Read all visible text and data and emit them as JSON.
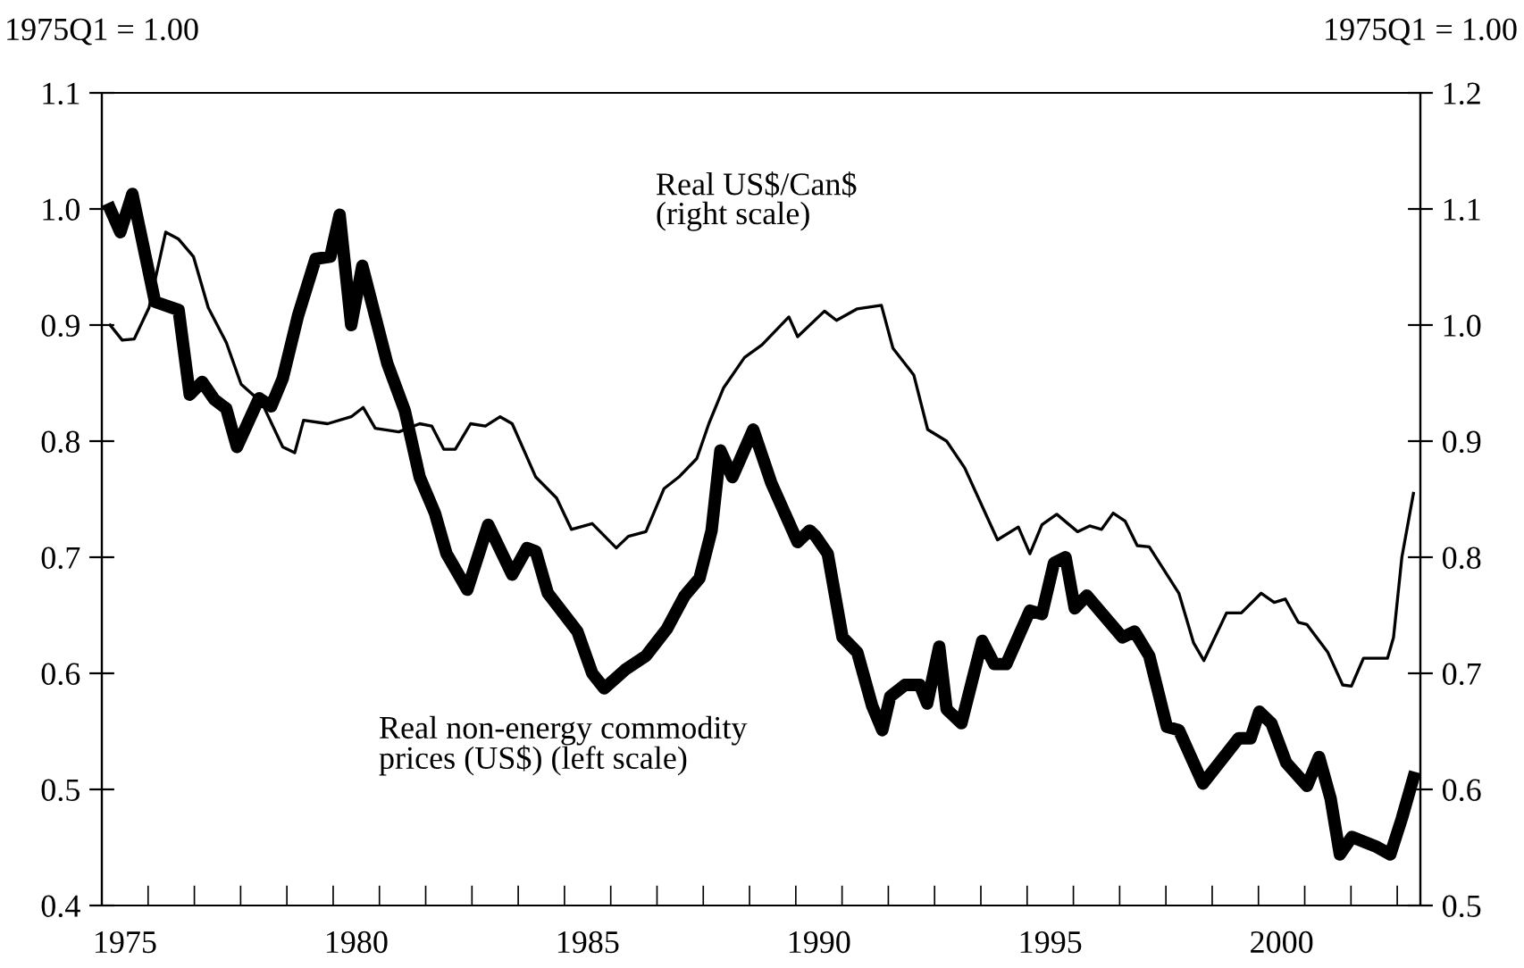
{
  "chart_data": {
    "type": "line",
    "ylabel": "1975Q1 = 1.00",
    "y2label": "1975Q1 = 1.00",
    "xlim": [
      1975,
      2003.5
    ],
    "xticks": [
      {
        "value": 1976,
        "label": null
      },
      {
        "value": 1977,
        "label": null
      },
      {
        "value": 1978,
        "label": null
      },
      {
        "value": 1979,
        "label": null
      },
      {
        "value": 1980,
        "label": null
      },
      {
        "value": 1981,
        "label": null
      },
      {
        "value": 1982,
        "label": null
      },
      {
        "value": 1983,
        "label": null
      },
      {
        "value": 1984,
        "label": null
      },
      {
        "value": 1985,
        "label": null
      },
      {
        "value": 1986,
        "label": null
      },
      {
        "value": 1987,
        "label": null
      },
      {
        "value": 1988,
        "label": null
      },
      {
        "value": 1989,
        "label": null
      },
      {
        "value": 1990,
        "label": null
      },
      {
        "value": 1991,
        "label": null
      },
      {
        "value": 1992,
        "label": null
      },
      {
        "value": 1993,
        "label": null
      },
      {
        "value": 1994,
        "label": null
      },
      {
        "value": 1995,
        "label": null
      },
      {
        "value": 1996,
        "label": null
      },
      {
        "value": 1997,
        "label": null
      },
      {
        "value": 1998,
        "label": null
      },
      {
        "value": 1999,
        "label": null
      },
      {
        "value": 2000,
        "label": null
      },
      {
        "value": 2001,
        "label": null
      },
      {
        "value": 2002,
        "label": null
      },
      {
        "value": 2003,
        "label": null
      },
      {
        "value": 1975.5,
        "label": "1975"
      },
      {
        "value": 1980.5,
        "label": "1980"
      },
      {
        "value": 1985.5,
        "label": "1985"
      },
      {
        "value": 1990.5,
        "label": "1990"
      },
      {
        "value": 1995.5,
        "label": "1995"
      },
      {
        "value": 2000.5,
        "label": "2000"
      }
    ],
    "ylim": [
      0.4,
      1.1
    ],
    "yticks": [
      {
        "value": 0.4,
        "label": "0.4"
      },
      {
        "value": 0.5,
        "label": "0.5"
      },
      {
        "value": 0.6,
        "label": "0.6"
      },
      {
        "value": 0.7,
        "label": "0.7"
      },
      {
        "value": 0.8,
        "label": "0.8"
      },
      {
        "value": 0.9,
        "label": "0.9"
      },
      {
        "value": 1.0,
        "label": "1.0"
      },
      {
        "value": 1.1,
        "label": "1.1"
      }
    ],
    "y2lim": [
      0.5,
      1.2
    ],
    "y2ticks": [
      {
        "value": 0.5,
        "label": "0.5"
      },
      {
        "value": 0.6,
        "label": "0.6"
      },
      {
        "value": 0.7,
        "label": "0.7"
      },
      {
        "value": 0.8,
        "label": "0.8"
      },
      {
        "value": 0.9,
        "label": "0.9"
      },
      {
        "value": 1.0,
        "label": "1.0"
      },
      {
        "value": 1.1,
        "label": "1.1"
      },
      {
        "value": 1.2,
        "label": "1.2"
      }
    ],
    "grid": false,
    "legend": false,
    "marker": "none",
    "line_style": "solid",
    "series": [
      {
        "name": "Real US$/Can$\n(right scale)",
        "color": "#000000",
        "axis": "y2",
        "x": [
          1975.18,
          1975.44,
          1975.7,
          1976.02,
          1976.38,
          1976.66,
          1976.98,
          1977.3,
          1977.69,
          1978.01,
          1978.46,
          1978.91,
          1979.17,
          1979.36,
          1979.88,
          1980.39,
          1980.65,
          1980.91,
          1981.42,
          1981.87,
          1982.13,
          1982.39,
          1982.64,
          1982.97,
          1983.29,
          1983.61,
          1983.87,
          1984.38,
          1984.83,
          1985.15,
          1985.6,
          1986.12,
          1986.38,
          1986.76,
          1987.15,
          1987.47,
          1987.86,
          1988.12,
          1988.44,
          1988.89,
          1989.27,
          1989.85,
          1990.04,
          1990.62,
          1990.88,
          1991.33,
          1991.85,
          1992.1,
          1992.55,
          1992.85,
          1993.26,
          1993.65,
          1993.97,
          1994.36,
          1994.81,
          1995.06,
          1995.32,
          1995.64,
          1996.09,
          1996.35,
          1996.61,
          1996.86,
          1997.12,
          1997.38,
          1997.64,
          1998.28,
          1998.6,
          1998.82,
          1999.31,
          1999.63,
          2000.06,
          2000.34,
          2000.58,
          2000.86,
          2001.05,
          2001.5,
          2001.82,
          2002.01,
          2002.27,
          2002.79,
          2002.92,
          2003.1,
          2003.35
        ],
        "values": [
          1.0,
          0.987,
          0.988,
          1.015,
          1.08,
          1.074,
          1.059,
          1.015,
          0.985,
          0.949,
          0.933,
          0.895,
          0.89,
          0.918,
          0.915,
          0.921,
          0.929,
          0.911,
          0.908,
          0.915,
          0.913,
          0.893,
          0.893,
          0.915,
          0.913,
          0.921,
          0.915,
          0.869,
          0.851,
          0.824,
          0.829,
          0.808,
          0.818,
          0.822,
          0.859,
          0.869,
          0.885,
          0.915,
          0.946,
          0.972,
          0.983,
          1.007,
          0.99,
          1.012,
          1.004,
          1.014,
          1.017,
          0.98,
          0.957,
          0.91,
          0.9,
          0.877,
          0.849,
          0.815,
          0.826,
          0.803,
          0.828,
          0.837,
          0.822,
          0.827,
          0.824,
          0.838,
          0.831,
          0.81,
          0.809,
          0.769,
          0.726,
          0.711,
          0.752,
          0.752,
          0.769,
          0.761,
          0.764,
          0.744,
          0.742,
          0.718,
          0.69,
          0.689,
          0.713,
          0.713,
          0.731,
          0.8,
          0.855
        ]
      },
      {
        "name": "Real non-energy commodity\nprices (US$) (left scale)",
        "color": "#000000",
        "x": [
          1975.18,
          1975.4,
          1975.66,
          1976.15,
          1976.66,
          1976.9,
          1977.17,
          1977.43,
          1977.69,
          1977.92,
          1978.4,
          1978.66,
          1978.91,
          1979.24,
          1979.62,
          1979.94,
          1980.14,
          1980.39,
          1980.63,
          1981.17,
          1981.55,
          1981.87,
          1982.2,
          1982.45,
          1982.9,
          1983.35,
          1983.87,
          1984.19,
          1984.38,
          1984.64,
          1985.28,
          1985.6,
          1985.86,
          1986.31,
          1986.76,
          1987.21,
          1987.6,
          1987.92,
          1988.18,
          1988.37,
          1988.63,
          1989.08,
          1989.47,
          1990.04,
          1990.3,
          1990.43,
          1990.69,
          1991.01,
          1991.33,
          1991.65,
          1991.87,
          1992.04,
          1992.36,
          1992.68,
          1992.84,
          1993.1,
          1993.26,
          1993.58,
          1994.03,
          1994.29,
          1994.55,
          1995.06,
          1995.32,
          1995.58,
          1995.83,
          1996.03,
          1996.29,
          1997.06,
          1997.32,
          1997.64,
          1998.02,
          1998.28,
          1998.8,
          1999.57,
          1999.83,
          2000.02,
          2000.28,
          2000.6,
          2001.05,
          2001.31,
          2001.56,
          2001.76,
          2002.02,
          2002.53,
          2002.85,
          2003.1,
          2003.35
        ],
        "values": [
          1.0,
          0.98,
          1.013,
          0.92,
          0.913,
          0.84,
          0.851,
          0.836,
          0.828,
          0.795,
          0.837,
          0.83,
          0.854,
          0.908,
          0.957,
          0.959,
          0.995,
          0.9,
          0.951,
          0.867,
          0.826,
          0.769,
          0.738,
          0.703,
          0.672,
          0.728,
          0.685,
          0.708,
          0.705,
          0.669,
          0.636,
          0.6,
          0.587,
          0.603,
          0.615,
          0.638,
          0.667,
          0.682,
          0.723,
          0.792,
          0.769,
          0.81,
          0.764,
          0.713,
          0.723,
          0.718,
          0.703,
          0.631,
          0.618,
          0.572,
          0.551,
          0.58,
          0.59,
          0.59,
          0.574,
          0.623,
          0.569,
          0.557,
          0.628,
          0.608,
          0.608,
          0.654,
          0.651,
          0.695,
          0.7,
          0.656,
          0.667,
          0.631,
          0.636,
          0.615,
          0.554,
          0.551,
          0.505,
          0.544,
          0.544,
          0.567,
          0.557,
          0.523,
          0.503,
          0.528,
          0.492,
          0.444,
          0.459,
          0.451,
          0.444,
          0.475,
          0.51
        ]
      }
    ]
  }
}
